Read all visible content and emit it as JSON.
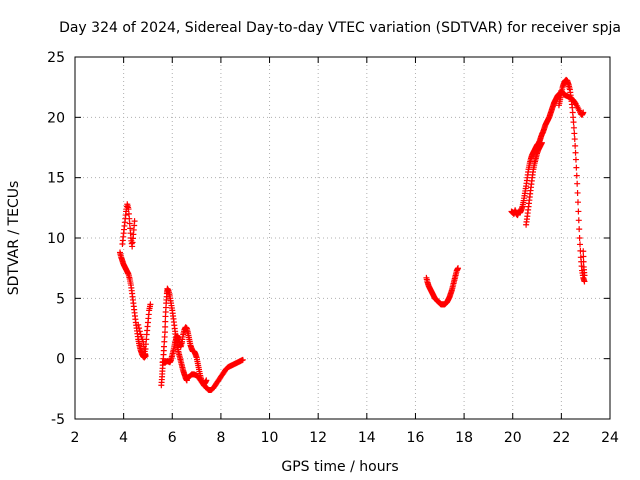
{
  "chart_data": {
    "type": "scatter",
    "title": "Day 324 of 2024, Sidereal Day-to-day VTEC variation (SDTVAR) for receiver spja",
    "xlabel": "GPS time / hours",
    "ylabel": "SDTVAR / TECUs",
    "xlim": [
      2,
      24
    ],
    "ylim": [
      -5,
      25
    ],
    "xticks": [
      2,
      4,
      6,
      8,
      10,
      12,
      14,
      16,
      18,
      20,
      22,
      24
    ],
    "yticks": [
      -5,
      0,
      5,
      10,
      15,
      20,
      25
    ],
    "grid": true,
    "marker": "plus",
    "color": "#ff0000",
    "series": [
      {
        "name": "SDTVAR",
        "segments": [
          [
            [
              3.85,
              8.8
            ],
            [
              3.9,
              8.4
            ],
            [
              3.95,
              8.1
            ],
            [
              4.0,
              7.8
            ],
            [
              4.05,
              7.6
            ],
            [
              4.1,
              7.4
            ],
            [
              4.15,
              7.2
            ],
            [
              4.2,
              7.0
            ],
            [
              4.25,
              6.6
            ],
            [
              4.3,
              6.1
            ],
            [
              4.35,
              5.4
            ],
            [
              4.4,
              4.6
            ],
            [
              4.45,
              3.8
            ],
            [
              4.5,
              3.0
            ],
            [
              4.55,
              2.3
            ],
            [
              4.6,
              1.6
            ],
            [
              4.65,
              1.1
            ],
            [
              4.7,
              0.7
            ],
            [
              4.75,
              0.4
            ],
            [
              4.8,
              0.2
            ],
            [
              4.85,
              0.1
            ],
            [
              4.9,
              0.3
            ]
          ],
          [
            [
              3.95,
              9.5
            ],
            [
              4.0,
              10.4
            ],
            [
              4.05,
              11.3
            ],
            [
              4.1,
              12.2
            ],
            [
              4.15,
              12.8
            ],
            [
              4.2,
              12.4
            ],
            [
              4.25,
              11.2
            ],
            [
              4.3,
              10.0
            ],
            [
              4.35,
              9.3
            ],
            [
              4.4,
              10.3
            ],
            [
              4.45,
              11.4
            ]
          ],
          [
            [
              4.6,
              2.8
            ],
            [
              4.7,
              2.0
            ],
            [
              4.8,
              1.4
            ],
            [
              4.85,
              0.8
            ],
            [
              4.9,
              0.2
            ]
          ],
          [
            [
              4.9,
              0.8
            ],
            [
              4.95,
              2.0
            ],
            [
              5.0,
              3.0
            ],
            [
              5.05,
              4.0
            ],
            [
              5.1,
              4.5
            ]
          ],
          [
            [
              5.55,
              -2.2
            ],
            [
              5.58,
              -1.5
            ],
            [
              5.6,
              -0.8
            ],
            [
              5.63,
              0.0
            ],
            [
              5.66,
              1.0
            ],
            [
              5.7,
              2.2
            ],
            [
              5.72,
              3.5
            ],
            [
              5.75,
              4.6
            ],
            [
              5.78,
              5.4
            ],
            [
              5.8,
              5.8
            ],
            [
              5.85,
              5.6
            ],
            [
              5.9,
              5.2
            ],
            [
              5.95,
              4.6
            ],
            [
              6.0,
              4.0
            ],
            [
              6.05,
              3.3
            ],
            [
              6.1,
              2.5
            ],
            [
              6.15,
              1.8
            ],
            [
              6.2,
              1.1
            ],
            [
              6.25,
              0.6
            ],
            [
              6.3,
              0.2
            ],
            [
              6.35,
              -0.2
            ],
            [
              6.4,
              -0.6
            ],
            [
              6.45,
              -1.0
            ],
            [
              6.5,
              -1.3
            ],
            [
              6.55,
              -1.6
            ],
            [
              6.6,
              -1.8
            ]
          ],
          [
            [
              5.6,
              -0.3
            ],
            [
              5.7,
              -0.3
            ],
            [
              5.8,
              -0.2
            ],
            [
              5.9,
              -0.3
            ],
            [
              5.95,
              -0.1
            ],
            [
              6.0,
              0.3
            ],
            [
              6.05,
              0.7
            ],
            [
              6.1,
              1.2
            ],
            [
              6.15,
              1.6
            ],
            [
              6.2,
              1.9
            ],
            [
              6.25,
              1.7
            ],
            [
              6.3,
              1.3
            ],
            [
              6.35,
              1.0
            ],
            [
              6.4,
              1.4
            ],
            [
              6.45,
              2.0
            ],
            [
              6.5,
              2.4
            ],
            [
              6.55,
              2.6
            ],
            [
              6.6,
              2.5
            ],
            [
              6.65,
              2.1
            ],
            [
              6.7,
              1.6
            ],
            [
              6.75,
              1.1
            ],
            [
              6.8,
              0.8
            ],
            [
              6.85,
              0.6
            ],
            [
              6.9,
              0.6
            ],
            [
              6.95,
              0.4
            ],
            [
              7.0,
              0.1
            ],
            [
              7.05,
              -0.4
            ],
            [
              7.1,
              -0.9
            ],
            [
              7.15,
              -1.4
            ],
            [
              7.2,
              -1.8
            ],
            [
              7.25,
              -2.0
            ],
            [
              7.3,
              -2.1
            ],
            [
              7.35,
              -2.0
            ],
            [
              7.4,
              -1.8
            ]
          ],
          [
            [
              6.6,
              -1.6
            ],
            [
              6.7,
              -1.5
            ],
            [
              6.8,
              -1.3
            ],
            [
              6.9,
              -1.3
            ],
            [
              7.0,
              -1.4
            ],
            [
              7.1,
              -1.6
            ],
            [
              7.2,
              -1.9
            ],
            [
              7.3,
              -2.2
            ],
            [
              7.4,
              -2.4
            ],
            [
              7.5,
              -2.6
            ],
            [
              7.6,
              -2.6
            ],
            [
              7.7,
              -2.4
            ],
            [
              7.8,
              -2.1
            ],
            [
              7.9,
              -1.8
            ],
            [
              8.0,
              -1.5
            ],
            [
              8.1,
              -1.2
            ],
            [
              8.2,
              -0.9
            ],
            [
              8.3,
              -0.7
            ],
            [
              8.4,
              -0.6
            ],
            [
              8.5,
              -0.5
            ],
            [
              8.6,
              -0.4
            ],
            [
              8.7,
              -0.3
            ],
            [
              8.8,
              -0.2
            ],
            [
              8.9,
              -0.1
            ]
          ],
          [
            [
              16.45,
              6.7
            ],
            [
              16.5,
              6.3
            ],
            [
              16.55,
              6.0
            ],
            [
              16.6,
              5.8
            ],
            [
              16.65,
              5.6
            ],
            [
              16.7,
              5.4
            ],
            [
              16.75,
              5.2
            ],
            [
              16.8,
              5.0
            ],
            [
              16.85,
              4.9
            ],
            [
              16.9,
              4.8
            ],
            [
              16.95,
              4.7
            ],
            [
              17.0,
              4.6
            ],
            [
              17.05,
              4.5
            ],
            [
              17.1,
              4.5
            ],
            [
              17.15,
              4.5
            ],
            [
              17.2,
              4.5
            ],
            [
              17.25,
              4.6
            ],
            [
              17.3,
              4.7
            ],
            [
              17.35,
              4.9
            ],
            [
              17.4,
              5.1
            ],
            [
              17.45,
              5.4
            ],
            [
              17.5,
              5.7
            ],
            [
              17.55,
              6.1
            ],
            [
              17.6,
              6.5
            ],
            [
              17.65,
              6.9
            ],
            [
              17.7,
              7.3
            ],
            [
              17.75,
              7.5
            ]
          ],
          [
            [
              19.95,
              12.2
            ],
            [
              20.0,
              12.1
            ],
            [
              20.05,
              12.0
            ],
            [
              20.1,
              12.3
            ],
            [
              20.15,
              12.0
            ],
            [
              20.2,
              11.9
            ],
            [
              20.25,
              12.2
            ],
            [
              20.3,
              12.1
            ],
            [
              20.35,
              12.3
            ],
            [
              20.4,
              12.6
            ],
            [
              20.45,
              13.1
            ],
            [
              20.5,
              13.7
            ],
            [
              20.55,
              14.3
            ],
            [
              20.6,
              15.0
            ],
            [
              20.65,
              15.7
            ],
            [
              20.7,
              16.2
            ],
            [
              20.75,
              16.6
            ],
            [
              20.8,
              16.9
            ],
            [
              20.85,
              17.1
            ],
            [
              20.9,
              17.3
            ],
            [
              20.95,
              17.5
            ],
            [
              21.0,
              17.7
            ],
            [
              21.05,
              17.8
            ],
            [
              21.1,
              18.0
            ],
            [
              21.15,
              18.3
            ],
            [
              21.2,
              18.6
            ],
            [
              21.25,
              18.8
            ],
            [
              21.3,
              19.1
            ],
            [
              21.35,
              19.4
            ],
            [
              21.4,
              19.6
            ],
            [
              21.45,
              19.8
            ],
            [
              21.5,
              20.0
            ],
            [
              21.55,
              20.3
            ],
            [
              21.6,
              20.6
            ],
            [
              21.65,
              20.9
            ],
            [
              21.7,
              21.2
            ],
            [
              21.75,
              21.4
            ],
            [
              21.8,
              21.6
            ],
            [
              21.85,
              21.8
            ],
            [
              21.9,
              21.9
            ],
            [
              21.95,
              22.0
            ],
            [
              22.0,
              22.1
            ]
          ],
          [
            [
              20.55,
              11.1
            ],
            [
              20.6,
              11.8
            ],
            [
              20.65,
              12.6
            ],
            [
              20.7,
              13.4
            ],
            [
              20.75,
              14.2
            ],
            [
              20.8,
              15.0
            ],
            [
              20.85,
              15.7
            ],
            [
              20.9,
              16.2
            ],
            [
              20.95,
              16.6
            ],
            [
              21.0,
              17.0
            ],
            [
              21.05,
              17.3
            ],
            [
              21.1,
              17.5
            ],
            [
              21.15,
              17.7
            ],
            [
              21.2,
              17.9
            ]
          ],
          [
            [
              21.9,
              21.0
            ],
            [
              21.95,
              21.5
            ],
            [
              22.0,
              22.0
            ],
            [
              22.05,
              22.5
            ],
            [
              22.1,
              22.8
            ],
            [
              22.15,
              23.0
            ],
            [
              22.2,
              23.1
            ],
            [
              22.25,
              23.0
            ],
            [
              22.3,
              22.7
            ],
            [
              22.35,
              22.3
            ],
            [
              22.4,
              21.6
            ],
            [
              22.45,
              20.8
            ],
            [
              22.5,
              19.6
            ],
            [
              22.55,
              18.2
            ],
            [
              22.6,
              16.5
            ],
            [
              22.65,
              14.5
            ],
            [
              22.7,
              12.2
            ],
            [
              22.75,
              10.0
            ],
            [
              22.8,
              8.4
            ],
            [
              22.85,
              7.3
            ],
            [
              22.9,
              6.7
            ],
            [
              22.95,
              6.4
            ]
          ],
          [
            [
              22.0,
              22.2
            ],
            [
              22.1,
              21.9
            ],
            [
              22.2,
              21.8
            ],
            [
              22.3,
              21.7
            ],
            [
              22.4,
              21.6
            ],
            [
              22.5,
              21.4
            ],
            [
              22.6,
              21.1
            ],
            [
              22.7,
              20.7
            ],
            [
              22.8,
              20.3
            ],
            [
              22.85,
              20.2
            ],
            [
              22.9,
              20.4
            ]
          ],
          [
            [
              22.9,
              8.9
            ],
            [
              22.92,
              7.6
            ],
            [
              22.95,
              6.9
            ]
          ]
        ]
      }
    ]
  }
}
